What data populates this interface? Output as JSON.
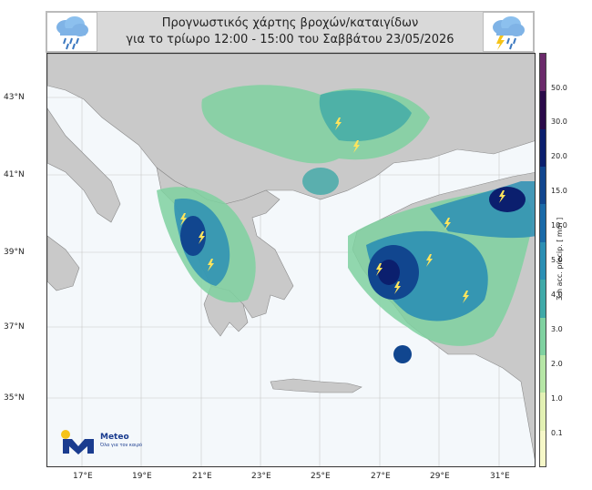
{
  "header": {
    "title_line1": "Προγνωστικός χάρτης βροχών/καταιγίδων",
    "title_line2": "για το τρίωρο 12:00 - 15:00 του Σαββάτου 23/05/2026",
    "left_icon": "rain-cloud-icon",
    "right_icon": "storm-cloud-icon"
  },
  "map": {
    "lat_labels": [
      "43°N",
      "41°N",
      "39°N",
      "37°N",
      "35°N"
    ],
    "lon_labels": [
      "17°E",
      "19°E",
      "21°E",
      "23°E",
      "25°E",
      "27°E",
      "29°E",
      "31°E"
    ]
  },
  "colorbar": {
    "title": "3-h acc. precip. [ mm ]",
    "labels": [
      "50.0",
      "30.0",
      "20.0",
      "15.0",
      "10.0",
      "5.0",
      "4.0",
      "3.0",
      "2.0",
      "1.0",
      "0.1"
    ],
    "colors": [
      "#6b2a6b",
      "#2a0a4a",
      "#0b1f6e",
      "#11468f",
      "#1a6aa8",
      "#2b8fb4",
      "#3fa9a8",
      "#7fd1a0",
      "#b6e6a6",
      "#e3f1b4",
      "#f6f8c8"
    ]
  },
  "logo": {
    "name": "Meteo",
    "tagline": "Όλα για τον καιρό"
  }
}
